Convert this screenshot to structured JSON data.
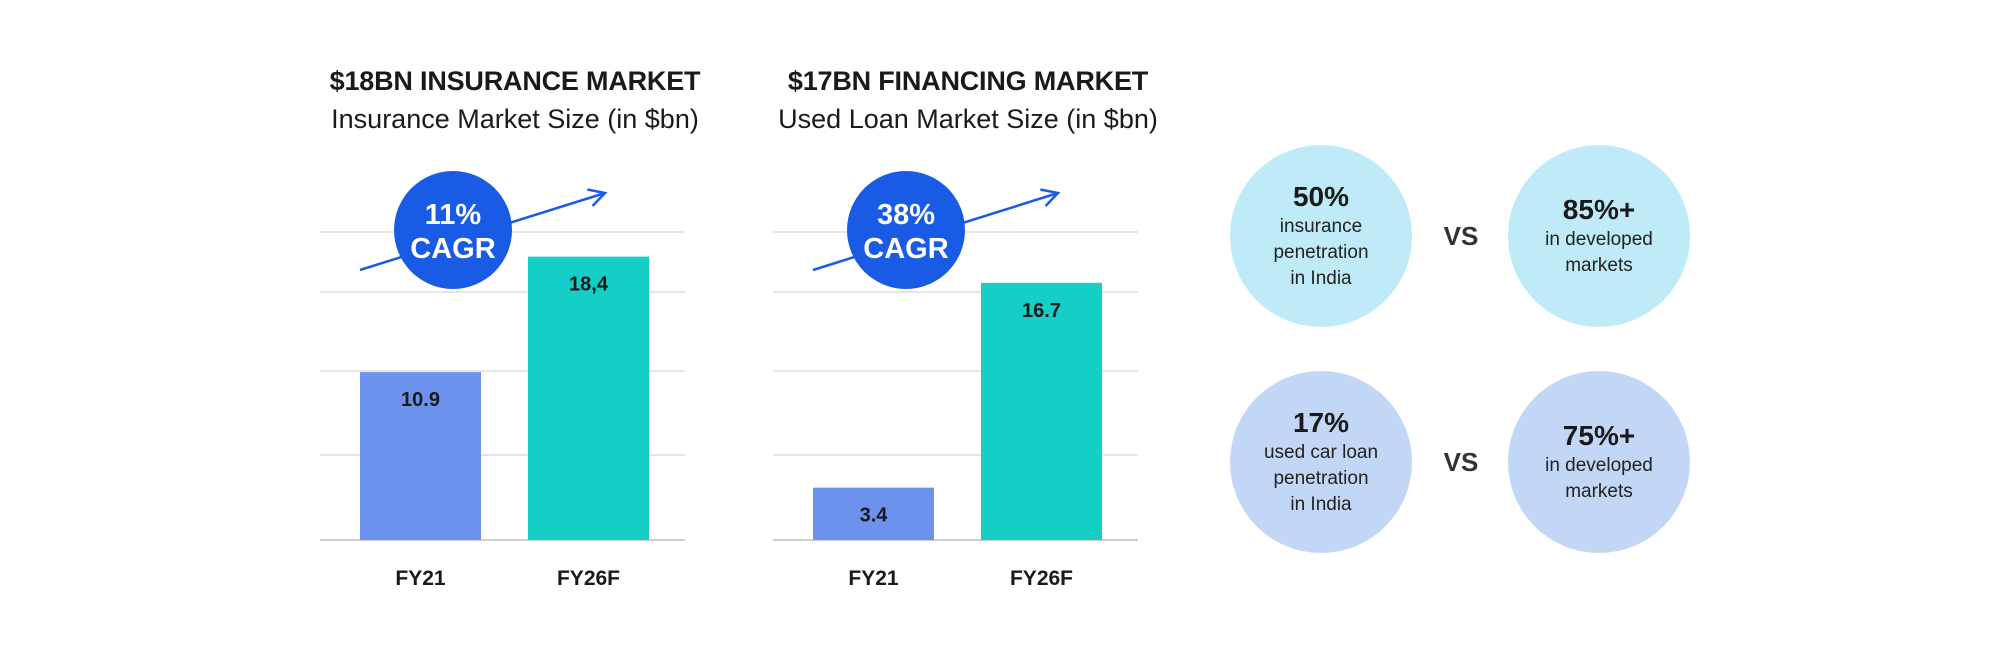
{
  "chart_data": [
    {
      "type": "bar",
      "title": "$18BN INSURANCE MARKET",
      "subtitle": "Insurance Market Size (in $bn)",
      "categories": [
        "FY21",
        "FY26F"
      ],
      "values": [
        10.9,
        18.4
      ],
      "value_labels": [
        "10.9",
        "18,4"
      ],
      "ylim": [
        0,
        20
      ],
      "grid": true,
      "bar_colors": [
        "#6b93ee",
        "#14cfc6"
      ],
      "annotation": {
        "value": "11%",
        "label": "CAGR",
        "color": "#1a5be6"
      }
    },
    {
      "type": "bar",
      "title": "$17BN FINANCING MARKET",
      "subtitle": "Used Loan Market Size (in $bn)",
      "categories": [
        "FY21",
        "FY26F"
      ],
      "values": [
        3.4,
        16.7
      ],
      "value_labels": [
        "3.4",
        "16.7"
      ],
      "ylim": [
        0,
        20
      ],
      "grid": true,
      "bar_colors": [
        "#6b93ee",
        "#14cfc6"
      ],
      "annotation": {
        "value": "38%",
        "label": "CAGR",
        "color": "#1a5be6"
      }
    }
  ],
  "comparisons": [
    {
      "left": {
        "value": "50%",
        "text": "insurance\npenetration\nin India"
      },
      "vs": "VS",
      "right": {
        "value": "85%+",
        "text": "in developed\nmarkets"
      },
      "color": "#bfeaf8"
    },
    {
      "left": {
        "value": "17%",
        "text": "used car loan\npenetration\nin India"
      },
      "vs": "VS",
      "right": {
        "value": "75%+",
        "text": "in developed\nmarkets"
      },
      "color": "#c2d7f5"
    }
  ]
}
